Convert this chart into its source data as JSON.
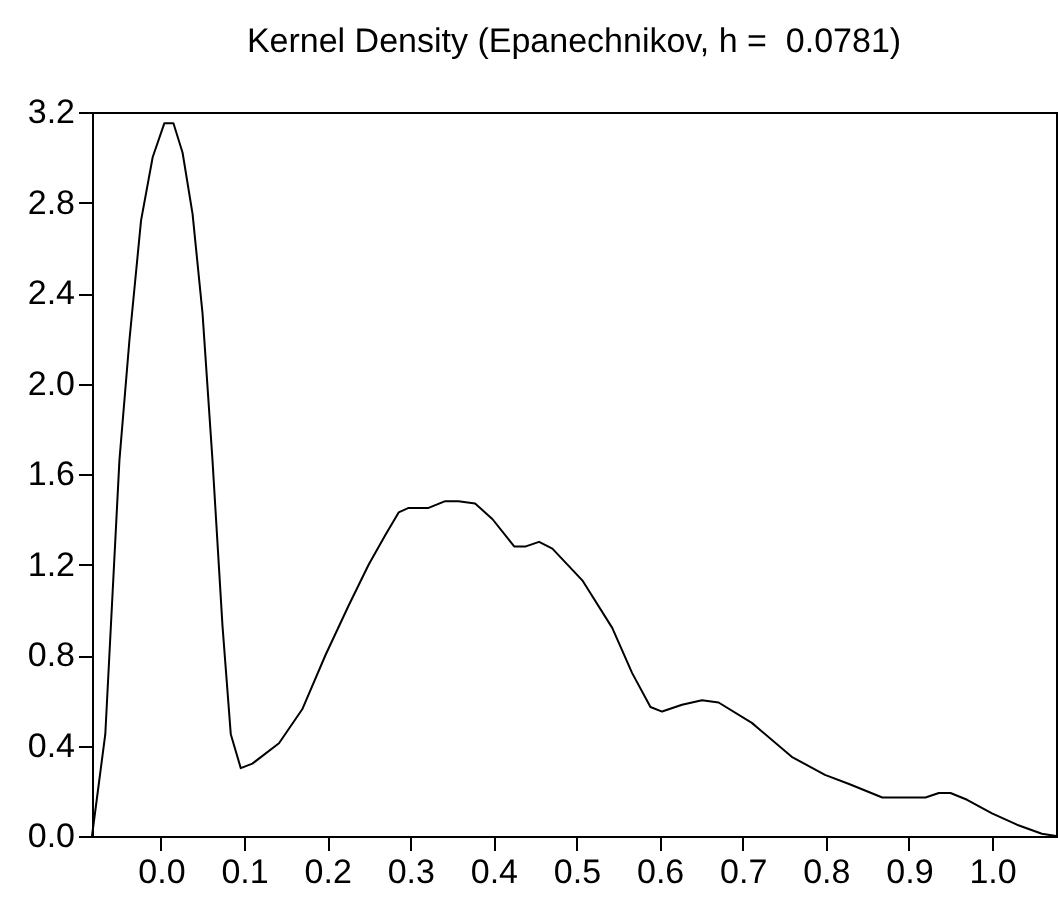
{
  "chart_data": {
    "type": "line",
    "title": "Kernel Density (Epanechnikov, h =  0.0781)",
    "x": [
      -0.083,
      -0.067,
      -0.05,
      -0.038,
      -0.024,
      -0.01,
      0.004,
      0.015,
      0.026,
      0.038,
      0.05,
      0.062,
      0.074,
      0.084,
      0.096,
      0.11,
      0.142,
      0.17,
      0.198,
      0.226,
      0.25,
      0.27,
      0.286,
      0.298,
      0.322,
      0.342,
      0.358,
      0.378,
      0.399,
      0.425,
      0.439,
      0.455,
      0.471,
      0.507,
      0.543,
      0.567,
      0.589,
      0.603,
      0.627,
      0.651,
      0.671,
      0.711,
      0.759,
      0.799,
      0.828,
      0.868,
      0.92,
      0.936,
      0.95,
      0.97,
      1.0,
      1.03,
      1.06,
      1.077
    ],
    "series": [
      {
        "color": "#000000",
        "values": [
          0,
          0.45,
          1.66,
          2.19,
          2.72,
          3.0,
          3.15,
          3.15,
          3.02,
          2.75,
          2.31,
          1.66,
          0.93,
          0.45,
          0.3,
          0.32,
          0.41,
          0.56,
          0.8,
          1.02,
          1.2,
          1.33,
          1.43,
          1.45,
          1.45,
          1.48,
          1.48,
          1.47,
          1.4,
          1.28,
          1.28,
          1.3,
          1.27,
          1.13,
          0.92,
          0.72,
          0.57,
          0.55,
          0.58,
          0.6,
          0.59,
          0.5,
          0.35,
          0.27,
          0.23,
          0.17,
          0.17,
          0.19,
          0.19,
          0.16,
          0.1,
          0.05,
          0.01,
          0
        ]
      }
    ],
    "xlim": [
      -0.083,
      1.077
    ],
    "ylim": [
      0,
      3.2
    ],
    "xticks": [
      {
        "value": 0,
        "label": "0.0"
      },
      0.1,
      0.2,
      0.3,
      0.4,
      0.5,
      0.6,
      0.7,
      0.8,
      0.9,
      {
        "value": 1,
        "label": "1.0"
      }
    ],
    "yticks": [
      {
        "value": 0,
        "label": "0.0"
      },
      0.4,
      0.8,
      1.2,
      1.6,
      {
        "value": 2,
        "label": "2.0"
      },
      2.4,
      2.8,
      3.2
    ],
    "grid": false,
    "line_style": "solid"
  }
}
